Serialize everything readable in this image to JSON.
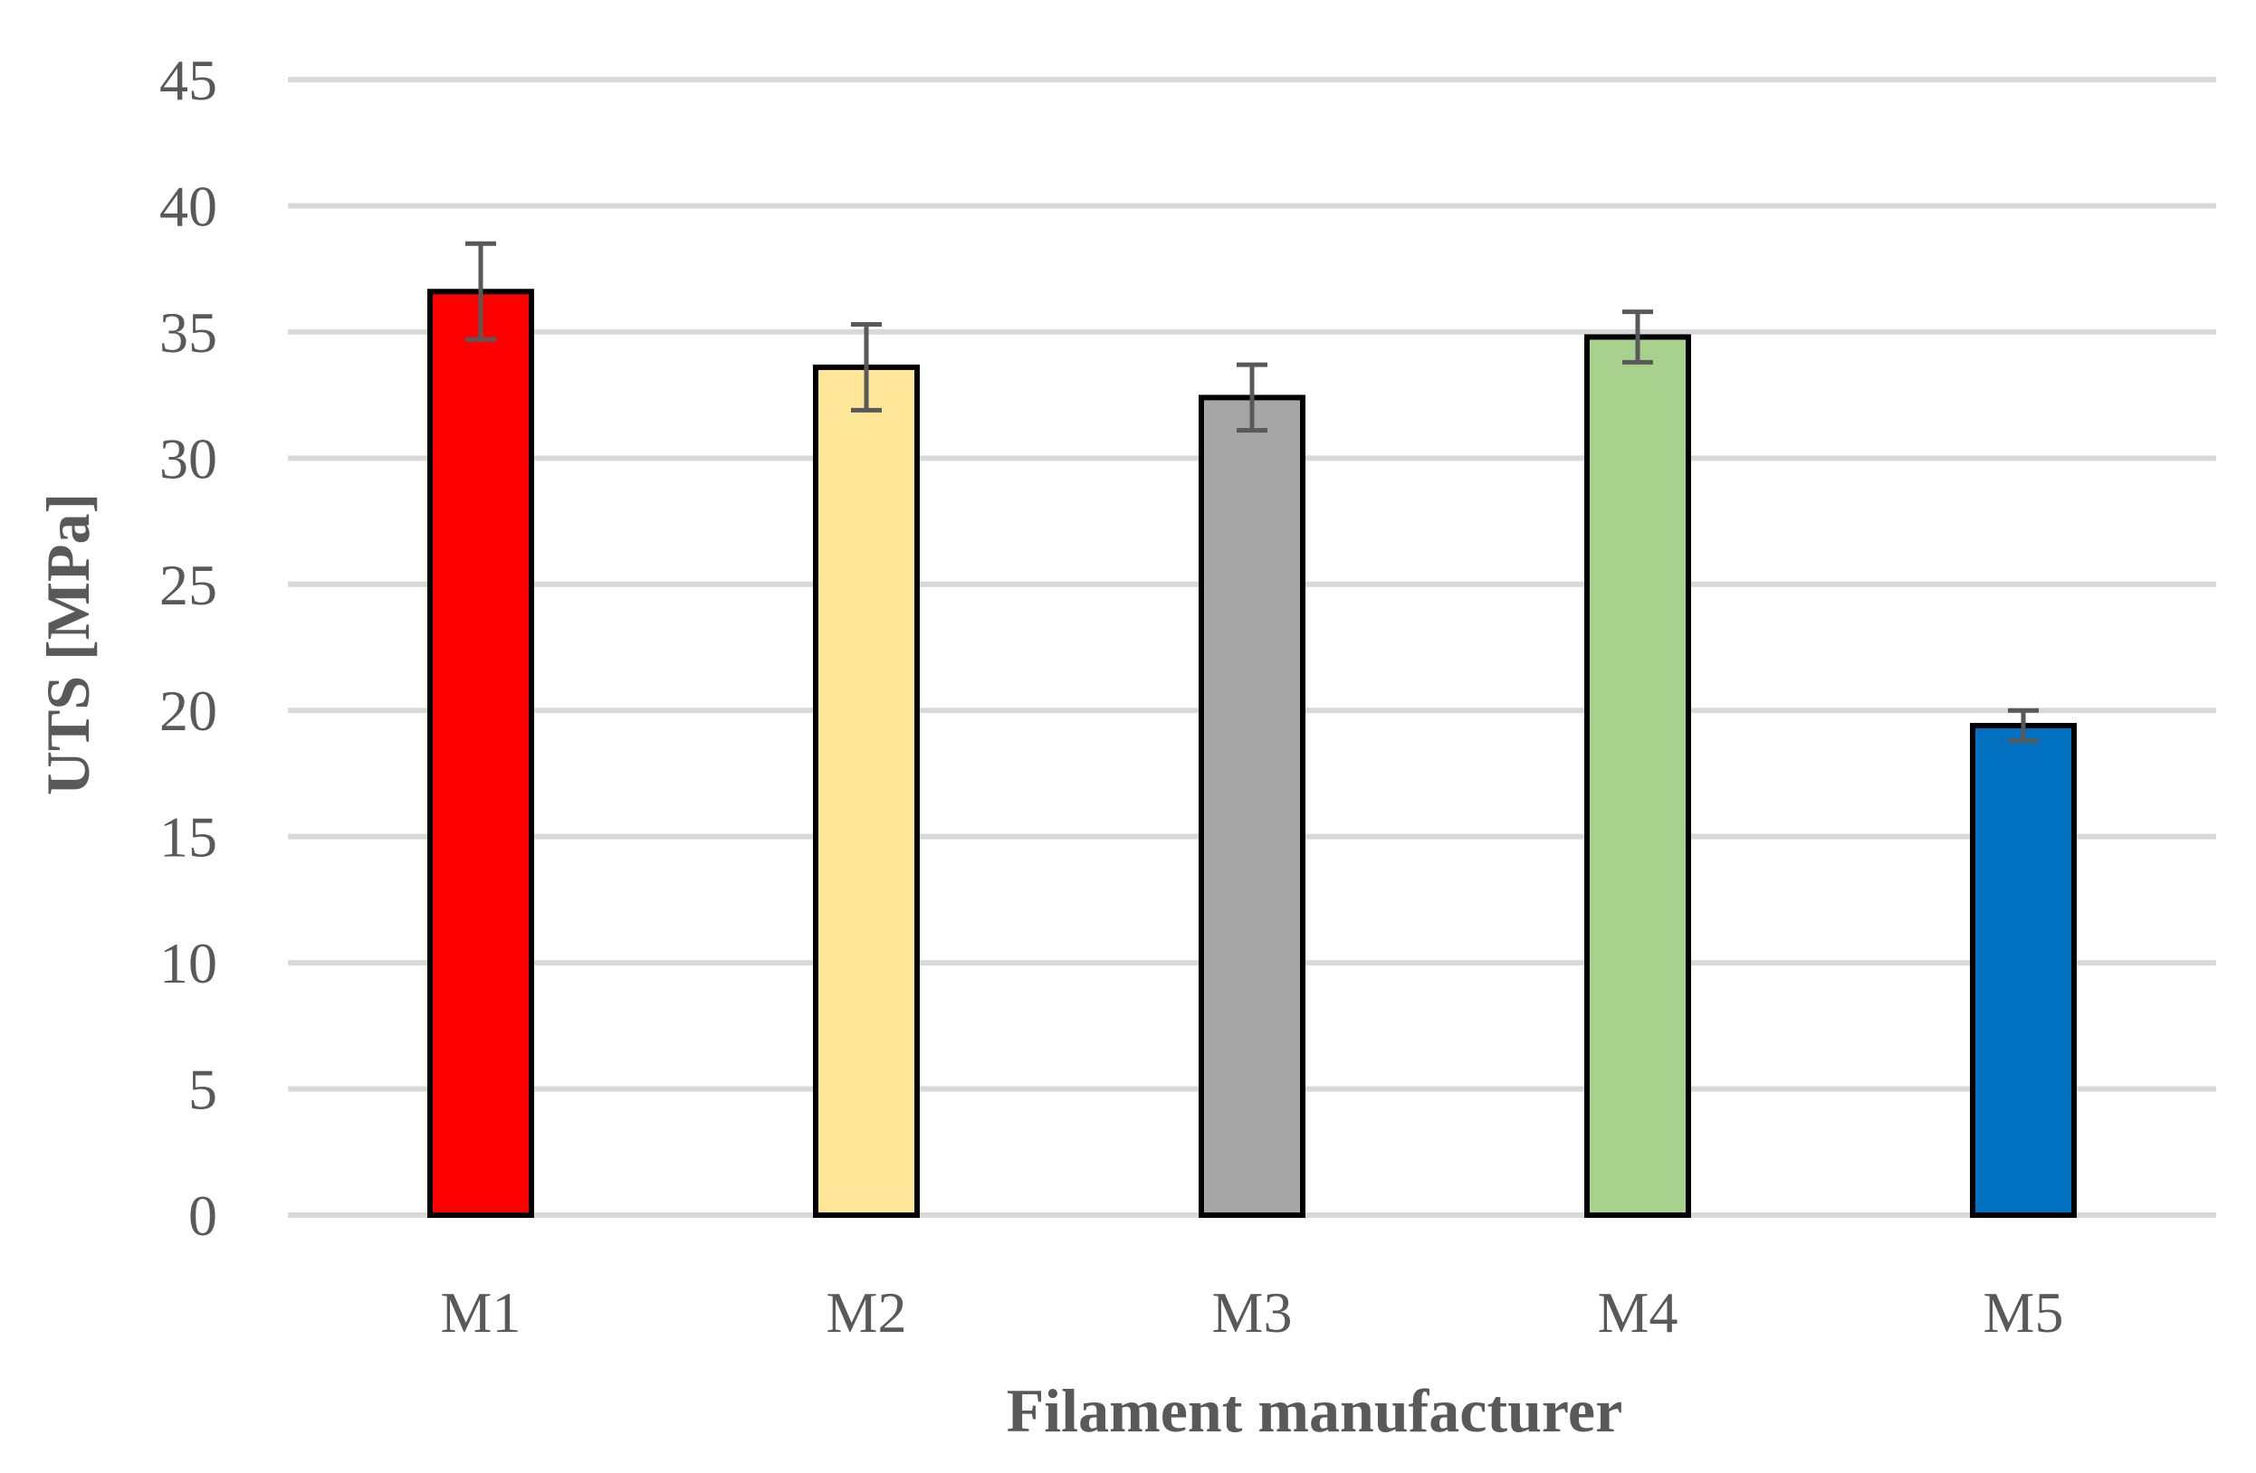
{
  "chart_data": {
    "type": "bar",
    "title": "",
    "xlabel": "Filament manufacturer",
    "ylabel": "UTS [MPa]",
    "ylim": [
      0,
      45
    ],
    "yticks": [
      "0",
      "5",
      "10",
      "15",
      "20",
      "25",
      "30",
      "35",
      "40",
      "45"
    ],
    "categories": [
      "M1",
      "M2",
      "M3",
      "M4",
      "M5"
    ],
    "values": [
      36.6,
      33.6,
      32.4,
      34.8,
      19.4
    ],
    "errors": [
      1.9,
      1.7,
      1.3,
      1.0,
      0.6
    ],
    "colors": [
      "#ff0000",
      "#ffe699",
      "#a6a6a6",
      "#a9d18e",
      "#0070c0"
    ],
    "grid": true,
    "legend": "none"
  }
}
